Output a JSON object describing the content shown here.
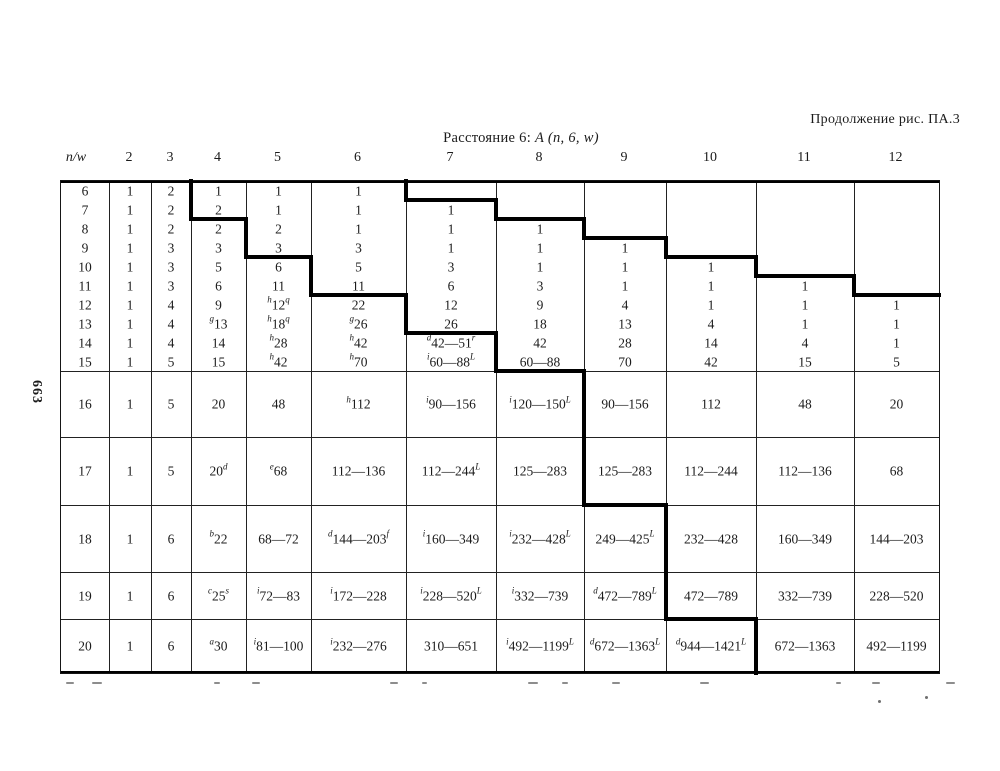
{
  "page": {
    "continuation_label": "Продолжение рис. ПА.3",
    "page_number": "663",
    "title_prefix": "Расстояние 6:",
    "title_formula": "A (n, 6, w)"
  },
  "table": {
    "col_headers": [
      "n/w",
      "2",
      "3",
      "4",
      "5",
      "6",
      "7",
      "8",
      "9",
      "10",
      "11",
      "12"
    ],
    "rows": [
      {
        "n": "6",
        "cells": [
          "1",
          "2",
          "1",
          "1",
          "1",
          "",
          "",
          "",
          "",
          "",
          ""
        ]
      },
      {
        "n": "7",
        "cells": [
          "1",
          "2",
          "2",
          "1",
          "1",
          "1",
          "",
          "",
          "",
          "",
          ""
        ]
      },
      {
        "n": "8",
        "cells": [
          "1",
          "2",
          "2",
          "2",
          "1",
          "1",
          "1",
          "",
          "",
          "",
          ""
        ]
      },
      {
        "n": "9",
        "cells": [
          "1",
          "3",
          "3",
          "3",
          "3",
          "1",
          "1",
          "1",
          "",
          "",
          ""
        ]
      },
      {
        "n": "10",
        "cells": [
          "1",
          "3",
          "5",
          "6",
          "5",
          "3",
          "1",
          "1",
          "1",
          "",
          ""
        ]
      },
      {
        "n": "11",
        "cells": [
          "1",
          "3",
          "6",
          "11",
          "11",
          "6",
          "3",
          "1",
          "1",
          "1",
          ""
        ]
      },
      {
        "n": "12",
        "cells": [
          "1",
          "4",
          "9",
          "^{h}12^{q}",
          "22",
          "12",
          "9",
          "4",
          "1",
          "1",
          "1"
        ]
      },
      {
        "n": "13",
        "cells": [
          "1",
          "4",
          "^{g}13",
          "^{h}18^{q}",
          "^{g}26",
          "26",
          "18",
          "13",
          "4",
          "1",
          "1"
        ]
      },
      {
        "n": "14",
        "cells": [
          "1",
          "4",
          "14",
          "^{h}28",
          "^{h}42",
          "^{d}42—51^{r}",
          "42",
          "28",
          "14",
          "4",
          "1"
        ]
      },
      {
        "n": "15",
        "cells": [
          "1",
          "5",
          "15",
          "^{h}42",
          "^{h}70",
          "^{i}60—88^{L}",
          "60—88",
          "70",
          "42",
          "15",
          "5"
        ]
      },
      {
        "n": "16",
        "cells": [
          "1",
          "5",
          "20",
          "48",
          "^{h}112",
          "^{i}90—156",
          "^{i}120—150^{L}",
          "90—156",
          "112",
          "48",
          "20"
        ]
      },
      {
        "n": "17",
        "cells": [
          "1",
          "5",
          "20^{d}",
          "^{e}68",
          "112—136",
          "112—244^{L}",
          "125—283",
          "125—283",
          "112—244",
          "112—136",
          "68"
        ]
      },
      {
        "n": "18",
        "cells": [
          "1",
          "6",
          "^{b}22",
          "68—72",
          "^{d}144—203^{f}",
          "^{i}160—349",
          "^{i}232—428^{L}",
          "249—425^{L}",
          "232—428",
          "160—349",
          "144—203"
        ]
      },
      {
        "n": "19",
        "cells": [
          "1",
          "6",
          "^{c}25^{s}",
          "^{i}72—83",
          "^{i}172—228",
          "^{i}228—520^{L}",
          "^{i}332—739",
          "^{d}472—789^{L}",
          "472—789",
          "332—739",
          "228—520"
        ]
      },
      {
        "n": "20",
        "cells": [
          "1",
          "6",
          "^{a}30",
          "^{i}81—100",
          "^{i}232—276",
          "310—651",
          "^{i}492—1199^{L}",
          "^{d}672—1363^{L}",
          "^{d}944—1421^{L}",
          "672—1363",
          "492—1199"
        ]
      }
    ]
  }
}
